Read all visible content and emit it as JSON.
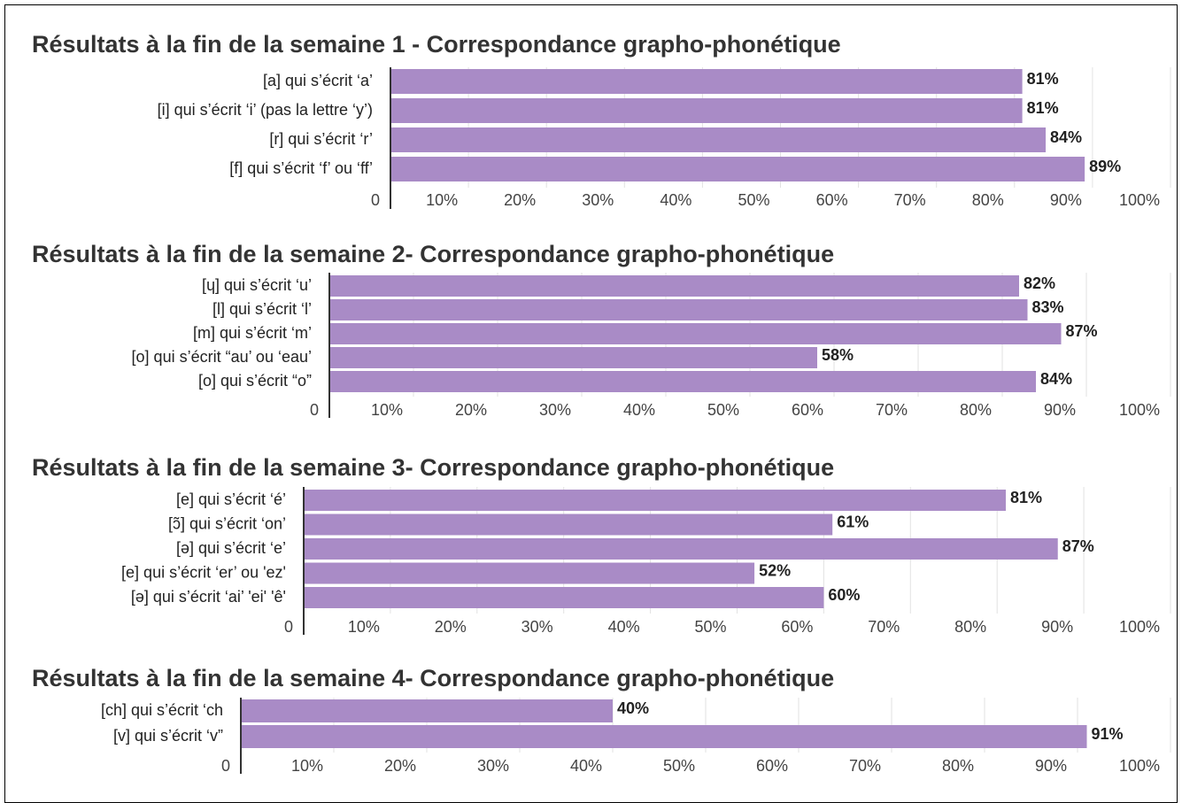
{
  "chart_data": [
    {
      "type": "bar",
      "orientation": "horizontal",
      "title": "Résultats à la fin de la semaine 1 - Correspondance grapho-phonétique",
      "categories": [
        "[a] qui s’écrit ‘a’",
        "[i] qui s’écrit ‘i’ (pas la lettre ‘y’)",
        "[r] qui s’écrit ‘r’",
        "[f] qui s’écrit ‘f’ ou ‘ff’"
      ],
      "values": [
        81,
        81,
        84,
        89
      ],
      "value_labels": [
        "81%",
        "81%",
        "84%",
        "89%"
      ],
      "color": "#a98bc6",
      "xlim": [
        0,
        100
      ],
      "xticks": [
        0,
        {
          "value": 10,
          "label": "10%"
        },
        {
          "value": 20,
          "label": "20%"
        },
        {
          "value": 30,
          "label": "30%"
        },
        {
          "value": 40,
          "label": "40%"
        },
        {
          "value": 50,
          "label": "50%"
        },
        {
          "value": 60,
          "label": "60%"
        },
        {
          "value": 70,
          "label": "70%"
        },
        {
          "value": 80,
          "label": "80%"
        },
        {
          "value": 90,
          "label": "90%"
        },
        {
          "value": 100,
          "label": "100%"
        }
      ],
      "grid": true
    },
    {
      "type": "bar",
      "orientation": "horizontal",
      "title": "Résultats à la fin de la semaine 2- Correspondance grapho-phonétique",
      "categories": [
        "[ɥ] qui s’écrit ‘u’",
        "[l] qui s’écrit ‘l’",
        "[m] qui s’écrit ‘m’",
        "[o] qui s’écrit “au’ ou ‘eau’",
        "[o] qui s’écrit “o”"
      ],
      "values": [
        82,
        83,
        87,
        58,
        84
      ],
      "value_labels": [
        "82%",
        "83%",
        "87%",
        "58%",
        "84%"
      ],
      "color": "#a98bc6",
      "xlim": [
        0,
        100
      ],
      "xticks": [
        0,
        {
          "value": 10,
          "label": "10%"
        },
        {
          "value": 20,
          "label": "20%"
        },
        {
          "value": 30,
          "label": "30%"
        },
        {
          "value": 40,
          "label": "40%"
        },
        {
          "value": 50,
          "label": "50%"
        },
        {
          "value": 60,
          "label": "60%"
        },
        {
          "value": 70,
          "label": "70%"
        },
        {
          "value": 80,
          "label": "80%"
        },
        {
          "value": 90,
          "label": "90%"
        },
        {
          "value": 100,
          "label": "100%"
        }
      ],
      "grid": true
    },
    {
      "type": "bar",
      "orientation": "horizontal",
      "title": "Résultats à la fin de la semaine 3- Correspondance grapho-phonétique",
      "categories": [
        "[e] qui s’écrit ‘é’",
        "[ɔ̃] qui s’écrit ‘on’",
        "[ə] qui s’écrit ‘e’",
        "[e] qui s’écrit ‘er’ ou 'ez'",
        "[ə] qui s’écrit ‘ai’ 'ei' 'ê'"
      ],
      "values": [
        81,
        61,
        87,
        52,
        60
      ],
      "value_labels": [
        "81%",
        "61%",
        "87%",
        "52%",
        "60%"
      ],
      "color": "#a98bc6",
      "xlim": [
        0,
        100
      ],
      "xticks": [
        0,
        {
          "value": 10,
          "label": "10%"
        },
        {
          "value": 20,
          "label": "20%"
        },
        {
          "value": 30,
          "label": "30%"
        },
        {
          "value": 40,
          "label": "40%"
        },
        {
          "value": 50,
          "label": "50%"
        },
        {
          "value": 60,
          "label": "60%"
        },
        {
          "value": 70,
          "label": "70%"
        },
        {
          "value": 80,
          "label": "80%"
        },
        {
          "value": 90,
          "label": "90%"
        },
        {
          "value": 100,
          "label": "100%"
        }
      ],
      "grid": true
    },
    {
      "type": "bar",
      "orientation": "horizontal",
      "title": "Résultats à la fin de la semaine 4- Correspondance grapho-phonétique",
      "categories": [
        "[ch] qui s’écrit ‘ch",
        "[v] qui s’écrit ‘v”"
      ],
      "values": [
        40,
        91
      ],
      "value_labels": [
        "40%",
        "91%"
      ],
      "color": "#a98bc6",
      "xlim": [
        0,
        100
      ],
      "xticks": [
        0,
        {
          "value": 10,
          "label": "10%"
        },
        {
          "value": 20,
          "label": "20%"
        },
        {
          "value": 30,
          "label": "30%"
        },
        {
          "value": 40,
          "label": "40%"
        },
        {
          "value": 50,
          "label": "50%"
        },
        {
          "value": 60,
          "label": "60%"
        },
        {
          "value": 70,
          "label": "70%"
        },
        {
          "value": 80,
          "label": "80%"
        },
        {
          "value": 90,
          "label": "90%"
        },
        {
          "value": 100,
          "label": "100%"
        }
      ],
      "grid": true
    }
  ]
}
